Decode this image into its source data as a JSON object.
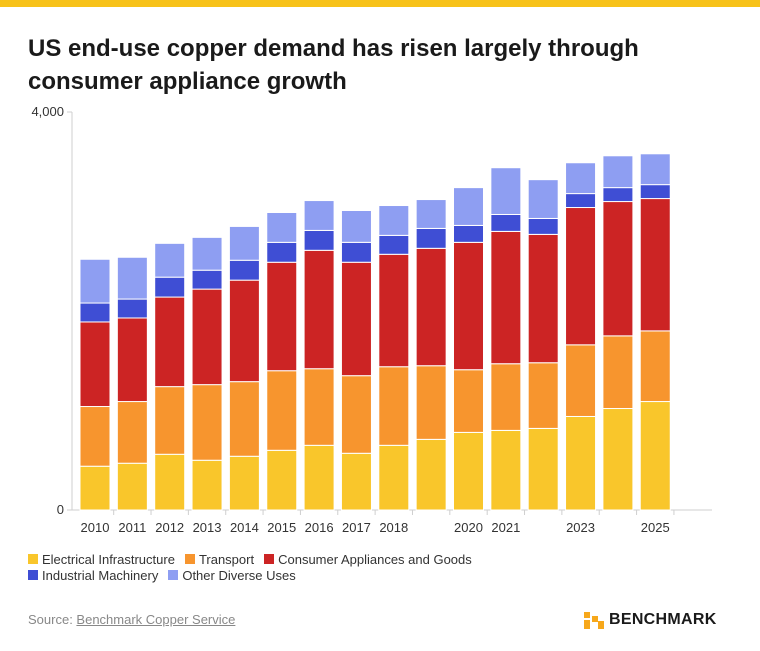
{
  "title": "US end-use copper demand has risen largely through consumer appliance growth",
  "source": {
    "prefix": "Source: ",
    "link": "Benchmark Copper Service"
  },
  "brand": {
    "name": "BENCHMARK",
    "color": "#f7a81b"
  },
  "chart_data": {
    "type": "bar",
    "stacked": true,
    "categories": [
      "2010",
      "2011",
      "2012",
      "2013",
      "2014",
      "2015",
      "2016",
      "2017",
      "2018",
      "2019",
      "2020",
      "2021",
      "2022",
      "2023",
      "2024",
      "2025"
    ],
    "x_tick_labels": [
      "2010",
      "2011",
      "2012",
      "2013",
      "2014",
      "2015",
      "2016",
      "2017",
      "2018",
      "",
      "2020",
      "2021",
      "",
      "2023",
      "",
      "2025"
    ],
    "y_tick_labels": [
      "0",
      "4,000"
    ],
    "ylim": [
      0,
      4000
    ],
    "grid": false,
    "legend_position": "bottom-left",
    "series": [
      {
        "name": "Electrical Infrastructure",
        "color": "#f9c62b",
        "values": [
          440,
          470,
          560,
          500,
          540,
          600,
          650,
          570,
          650,
          710,
          780,
          800,
          820,
          940,
          1020,
          1090
        ]
      },
      {
        "name": "Transport",
        "color": "#f7952e",
        "values": [
          600,
          620,
          680,
          760,
          750,
          800,
          770,
          780,
          790,
          740,
          630,
          670,
          660,
          720,
          730,
          710
        ]
      },
      {
        "name": "Consumer Appliances and Goods",
        "color": "#cc2424",
        "values": [
          850,
          840,
          900,
          960,
          1020,
          1090,
          1190,
          1140,
          1130,
          1180,
          1280,
          1330,
          1290,
          1380,
          1350,
          1330
        ]
      },
      {
        "name": "Industrial Machinery",
        "color": "#3f4ed4",
        "values": [
          190,
          190,
          200,
          190,
          200,
          200,
          200,
          200,
          190,
          200,
          170,
          170,
          160,
          140,
          140,
          140
        ]
      },
      {
        "name": "Other Diverse Uses",
        "color": "#8e9ef2",
        "values": [
          440,
          420,
          340,
          330,
          340,
          300,
          300,
          320,
          300,
          290,
          380,
          470,
          390,
          310,
          320,
          310
        ]
      }
    ]
  }
}
